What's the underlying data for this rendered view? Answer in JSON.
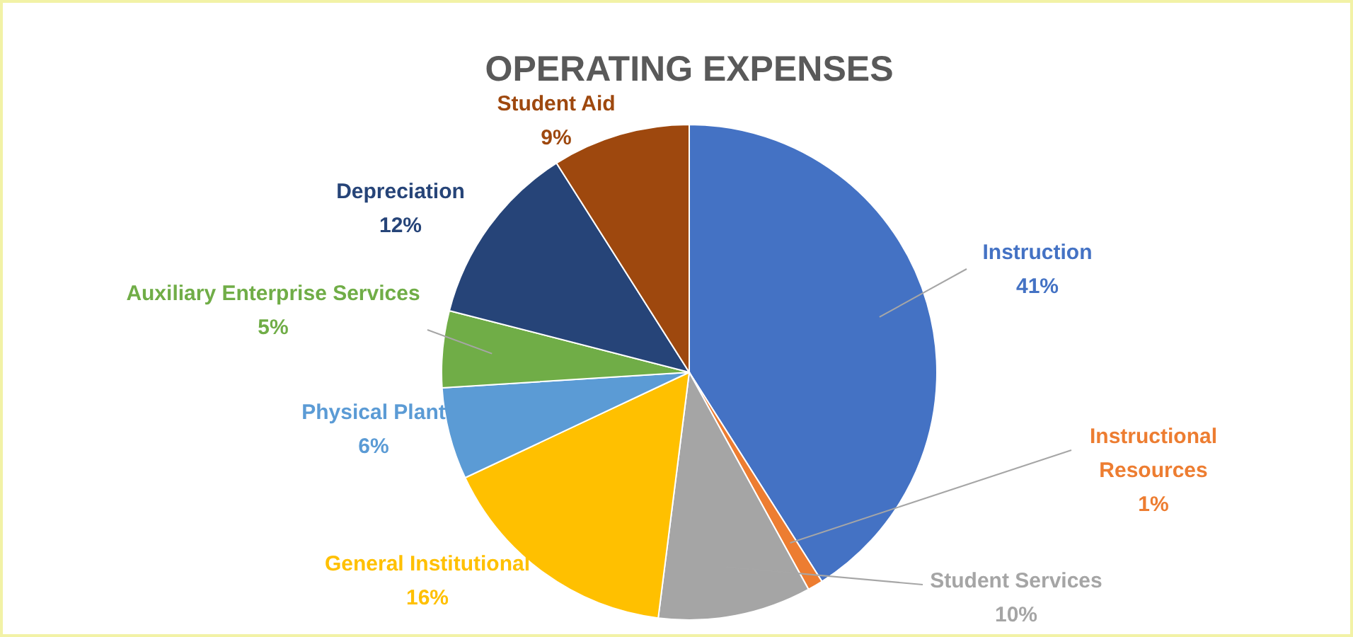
{
  "chart_data": {
    "type": "pie",
    "title": "OPERATING EXPENSES",
    "categories": [
      "Instruction",
      "Instructional Resources",
      "Student Services",
      "General Institutional",
      "Physical Plant",
      "Auxiliary Enterprise Services",
      "Depreciation",
      "Student Aid"
    ],
    "values": [
      41,
      1,
      10,
      16,
      6,
      5,
      12,
      9
    ],
    "value_labels": [
      "41%",
      "1%",
      "10%",
      "16%",
      "6%",
      "5%",
      "12%",
      "9%"
    ],
    "colors": [
      "#4472c4",
      "#ed7d31",
      "#a5a5a5",
      "#ffc000",
      "#5b9bd5",
      "#70ad47",
      "#264478",
      "#9e480e"
    ]
  }
}
